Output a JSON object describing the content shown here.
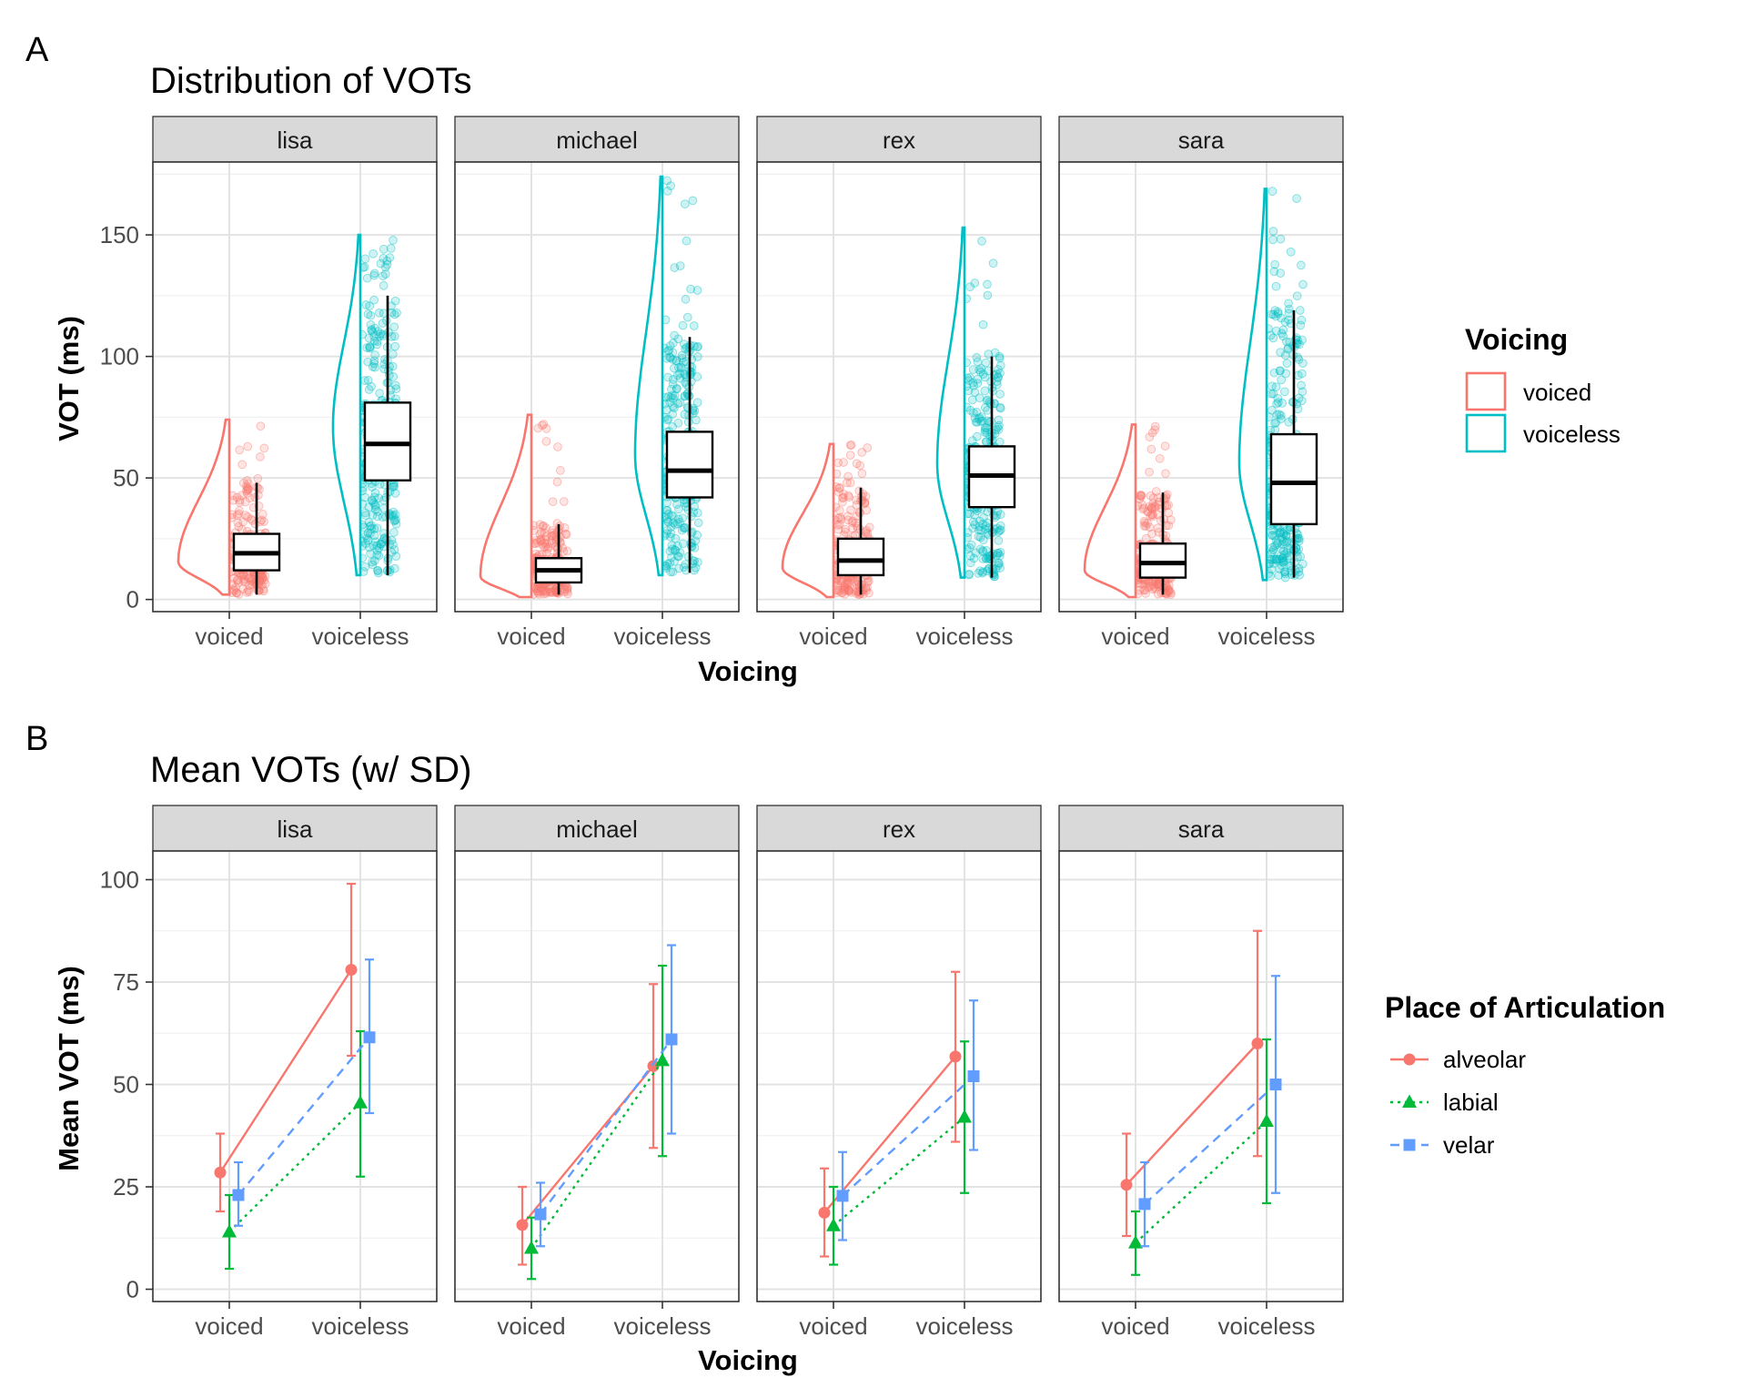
{
  "figure": {
    "panel_a_letter": "A",
    "panel_b_letter": "B"
  },
  "chart_data": [
    {
      "type": "raincloud",
      "title": "Distribution of VOTs",
      "xlabel": "Voicing",
      "ylabel": "VOT (ms)",
      "ylim": [
        -5,
        180
      ],
      "yticks": [
        0,
        50,
        100,
        150
      ],
      "categories": [
        "voiced",
        "voiceless"
      ],
      "facets": [
        "lisa",
        "michael",
        "rex",
        "sara"
      ],
      "legend": {
        "title": "Voicing",
        "position": "right",
        "entries": [
          {
            "label": "voiced",
            "color": "#F8766D"
          },
          {
            "label": "voiceless",
            "color": "#00BFC4"
          }
        ]
      },
      "boxes": {
        "lisa": {
          "voiced": {
            "min": 2,
            "q1": 12,
            "median": 19,
            "q3": 27,
            "max": 48
          },
          "voiceless": {
            "min": 10,
            "q1": 49,
            "median": 64,
            "q3": 81,
            "max": 125
          }
        },
        "michael": {
          "voiced": {
            "min": 2,
            "q1": 7,
            "median": 12,
            "q3": 17,
            "max": 31
          },
          "voiceless": {
            "min": 11,
            "q1": 42,
            "median": 53,
            "q3": 69,
            "max": 108
          }
        },
        "rex": {
          "voiced": {
            "min": 2,
            "q1": 10,
            "median": 16,
            "q3": 25,
            "max": 46
          },
          "voiceless": {
            "min": 9,
            "q1": 38,
            "median": 51,
            "q3": 63,
            "max": 100
          }
        },
        "sara": {
          "voiced": {
            "min": 2,
            "q1": 9,
            "median": 15,
            "q3": 23,
            "max": 44
          },
          "voiceless": {
            "min": 9,
            "q1": 31,
            "median": 48,
            "q3": 68,
            "max": 119
          }
        }
      },
      "density_extremes": {
        "lisa": {
          "voiced": [
            2,
            74
          ],
          "voiceless": [
            10,
            150
          ]
        },
        "michael": {
          "voiced": [
            1,
            76
          ],
          "voiceless": [
            10,
            174
          ]
        },
        "rex": {
          "voiced": [
            1,
            64
          ],
          "voiceless": [
            9,
            153
          ]
        },
        "sara": {
          "voiced": [
            1,
            72
          ],
          "voiceless": [
            8,
            169
          ]
        }
      }
    },
    {
      "type": "line",
      "title": "Mean VOTs (w/ SD)",
      "xlabel": "Voicing",
      "ylabel": "Mean VOT (ms)",
      "ylim": [
        -3,
        107
      ],
      "yticks": [
        0,
        25,
        50,
        75,
        100
      ],
      "categories": [
        "voiced",
        "voiceless"
      ],
      "facets": [
        "lisa",
        "michael",
        "rex",
        "sara"
      ],
      "legend": {
        "title": "Place of Articulation",
        "position": "right",
        "entries": [
          {
            "label": "alveolar",
            "color": "#F8766D",
            "shape": "circle",
            "line": "solid"
          },
          {
            "label": "labial",
            "color": "#00BA38",
            "shape": "triangle",
            "line": "dotted"
          },
          {
            "label": "velar",
            "color": "#619CFF",
            "shape": "square",
            "line": "dashed"
          }
        ]
      },
      "series": [
        {
          "name": "alveolar",
          "values": {
            "lisa": [
              {
                "mean": 28.5,
                "low": 19,
                "high": 38
              },
              {
                "mean": 78,
                "low": 57,
                "high": 99
              }
            ],
            "michael": [
              {
                "mean": 15.7,
                "low": 6,
                "high": 25
              },
              {
                "mean": 54.5,
                "low": 34.5,
                "high": 74.5
              }
            ],
            "rex": [
              {
                "mean": 18.7,
                "low": 8,
                "high": 29.5
              },
              {
                "mean": 56.8,
                "low": 36,
                "high": 77.5
              }
            ],
            "sara": [
              {
                "mean": 25.5,
                "low": 13,
                "high": 38
              },
              {
                "mean": 60,
                "low": 32.5,
                "high": 87.5
              }
            ]
          }
        },
        {
          "name": "labial",
          "values": {
            "lisa": [
              {
                "mean": 14,
                "low": 5,
                "high": 23
              },
              {
                "mean": 45.5,
                "low": 27.5,
                "high": 63
              }
            ],
            "michael": [
              {
                "mean": 10,
                "low": 2.5,
                "high": 17.5
              },
              {
                "mean": 55.8,
                "low": 32.5,
                "high": 79
              }
            ],
            "rex": [
              {
                "mean": 15.5,
                "low": 6,
                "high": 25
              },
              {
                "mean": 42,
                "low": 23.5,
                "high": 60.5
              }
            ],
            "sara": [
              {
                "mean": 11.3,
                "low": 3.5,
                "high": 19
              },
              {
                "mean": 41,
                "low": 21,
                "high": 61
              }
            ]
          }
        },
        {
          "name": "velar",
          "values": {
            "lisa": [
              {
                "mean": 23,
                "low": 15.5,
                "high": 31
              },
              {
                "mean": 61.5,
                "low": 43,
                "high": 80.5
              }
            ],
            "michael": [
              {
                "mean": 18.3,
                "low": 10.5,
                "high": 26
              },
              {
                "mean": 61,
                "low": 38,
                "high": 84
              }
            ],
            "rex": [
              {
                "mean": 22.8,
                "low": 12,
                "high": 33.5
              },
              {
                "mean": 52,
                "low": 34,
                "high": 70.5
              }
            ],
            "sara": [
              {
                "mean": 20.8,
                "low": 10.5,
                "high": 31
              },
              {
                "mean": 50,
                "low": 23.5,
                "high": 76.5
              }
            ]
          }
        }
      ]
    }
  ]
}
